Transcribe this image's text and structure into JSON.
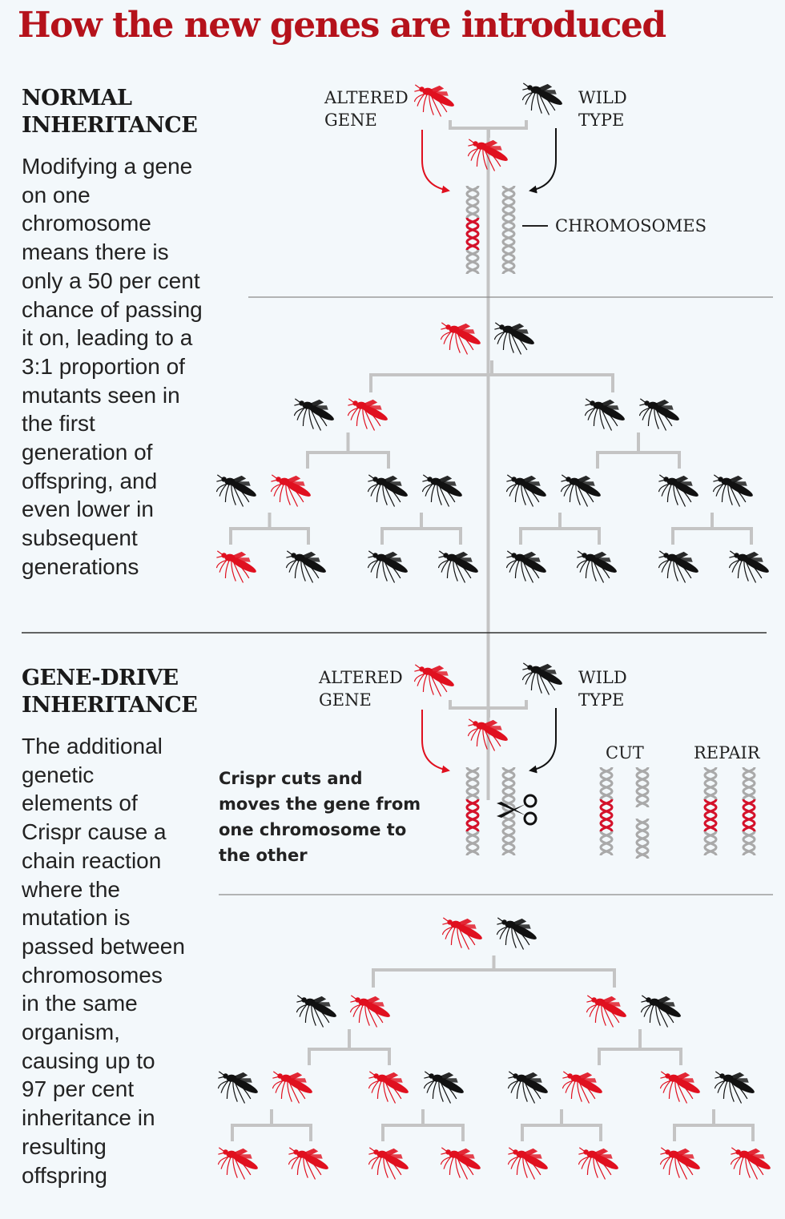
{
  "title": "How the new genes are introduced",
  "colors": {
    "title": "#b5121b",
    "altered": "#e0101f",
    "wild": "#111111",
    "tree": "#c4c4c4",
    "chromosome": "#a9a9a9",
    "background": "#f3f8fb"
  },
  "sections": [
    {
      "heading": "NORMAL\nINHERITANCE",
      "description": "Modifying a gene\non one\nchromosome\nmeans there is\nonly a 50 per cent\nchance of passing\nit on, leading to a\n3:1 proportion of\nmutants seen in\nthe first\ngeneration of\noffspring, and\neven lower in\nsubsequent\ngenerations",
      "altered_label": "ALTERED\nGENE",
      "wild_label": "WILD\nTYPE",
      "chromosomes_label": "CHROMOSOMES",
      "generations": [
        [
          [
            "altered",
            "wild"
          ]
        ],
        [
          [
            "wild",
            "altered"
          ],
          [
            "wild",
            "wild"
          ]
        ],
        [
          [
            "wild",
            "altered"
          ],
          [
            "wild",
            "wild"
          ],
          [
            "wild",
            "wild"
          ],
          [
            "wild",
            "wild"
          ]
        ],
        [
          [
            "altered",
            "wild"
          ],
          [
            "wild",
            "wild"
          ],
          [
            "wild",
            "wild"
          ],
          [
            "wild",
            "wild"
          ]
        ]
      ]
    },
    {
      "heading": "GENE-DRIVE\nINHERITANCE",
      "description": "The additional\ngenetic\nelements of\nCrispr cause a\nchain reaction\nwhere the\nmutation is\npassed between\nchromosomes\nin the same\norganism,\ncausing up to\n97 per cent\ninheritance in\nresulting\noffspring",
      "altered_label": "ALTERED\nGENE",
      "wild_label": "WILD\nTYPE",
      "crispr_text": "Crispr cuts and\nmoves the gene from\none chromosome to\nthe other",
      "cut_label": "CUT",
      "repair_label": "REPAIR",
      "generations": [
        [
          [
            "altered",
            "wild"
          ]
        ],
        [
          [
            "wild",
            "altered"
          ],
          [
            "altered",
            "wild"
          ]
        ],
        [
          [
            "wild",
            "altered"
          ],
          [
            "altered",
            "wild"
          ],
          [
            "wild",
            "altered"
          ],
          [
            "altered",
            "wild"
          ]
        ],
        [
          [
            "altered",
            "altered"
          ],
          [
            "altered",
            "altered"
          ],
          [
            "altered",
            "altered"
          ],
          [
            "altered",
            "altered"
          ]
        ]
      ]
    }
  ]
}
